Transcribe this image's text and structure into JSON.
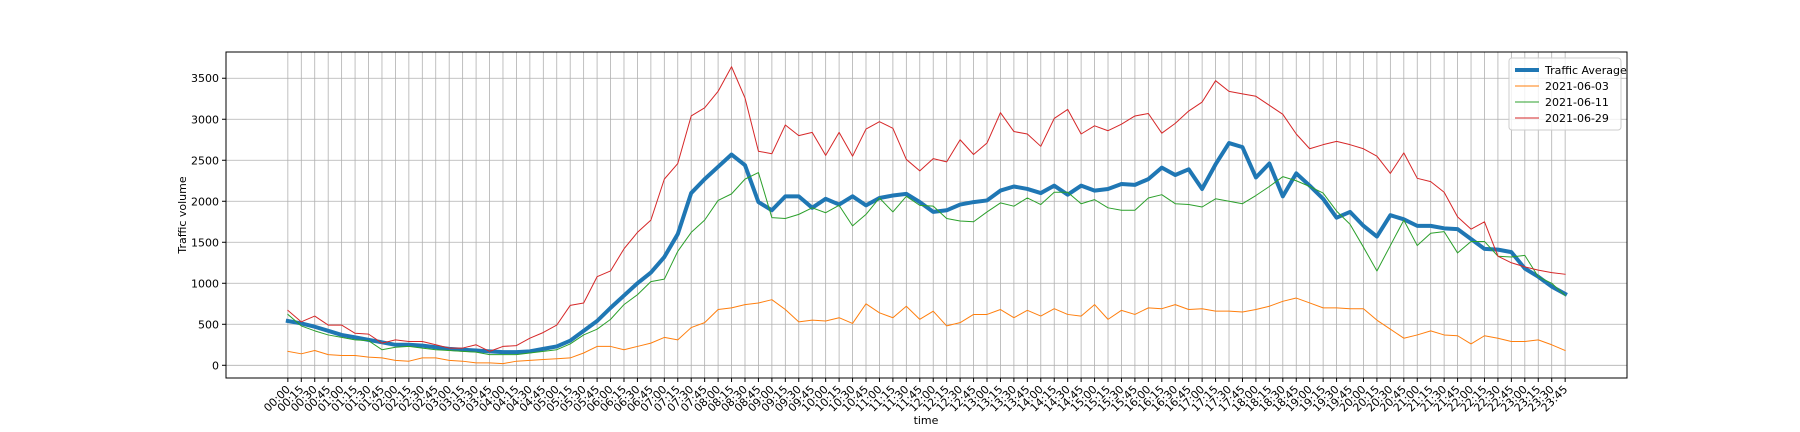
{
  "chart_data": {
    "type": "line",
    "x_label": "time",
    "y_label": "Traffic volume",
    "categories": [
      "00:00",
      "00:15",
      "00:30",
      "00:45",
      "01:00",
      "01:15",
      "01:30",
      "01:45",
      "02:00",
      "02:15",
      "02:30",
      "02:45",
      "03:00",
      "03:15",
      "03:30",
      "03:45",
      "04:00",
      "04:15",
      "04:30",
      "04:45",
      "05:00",
      "05:15",
      "05:30",
      "05:45",
      "06:00",
      "06:15",
      "06:30",
      "06:45",
      "07:00",
      "07:15",
      "07:30",
      "07:45",
      "08:00",
      "08:15",
      "08:30",
      "08:45",
      "09:00",
      "09:15",
      "09:30",
      "09:45",
      "10:00",
      "10:15",
      "10:30",
      "10:45",
      "11:00",
      "11:15",
      "11:30",
      "11:45",
      "12:00",
      "12:15",
      "12:30",
      "12:45",
      "13:00",
      "13:15",
      "13:30",
      "13:45",
      "14:00",
      "14:15",
      "14:30",
      "14:45",
      "15:00",
      "15:15",
      "15:30",
      "15:45",
      "16:00",
      "16:15",
      "16:30",
      "16:45",
      "17:00",
      "17:15",
      "17:30",
      "17:45",
      "18:00",
      "18:15",
      "18:30",
      "18:45",
      "19:00",
      "19:15",
      "19:30",
      "19:45",
      "20:00",
      "20:15",
      "20:30",
      "20:45",
      "21:00",
      "21:15",
      "21:30",
      "21:45",
      "22:00",
      "22:15",
      "22:30",
      "22:45",
      "23:00",
      "23:15",
      "23:30",
      "23:45"
    ],
    "series": [
      {
        "name": "Traffic Average",
        "color": "#1f77b4",
        "width": 4,
        "values": [
          540,
          510,
          470,
          420,
          370,
          340,
          310,
          280,
          250,
          250,
          240,
          220,
          200,
          190,
          180,
          170,
          160,
          160,
          170,
          200,
          230,
          300,
          420,
          540,
          700,
          850,
          1000,
          1130,
          1320,
          1600,
          2100,
          2270,
          2420,
          2570,
          2440,
          1990,
          1890,
          2060,
          2060,
          1920,
          2030,
          1960,
          2060,
          1950,
          2040,
          2070,
          2090,
          1990,
          1870,
          1890,
          1960,
          1990,
          2010,
          2130,
          2180,
          2150,
          2100,
          2190,
          2080,
          2190,
          2130,
          2150,
          2210,
          2200,
          2270,
          2410,
          2320,
          2390,
          2150,
          2450,
          2710,
          2660,
          2290,
          2460,
          2060,
          2340,
          2190,
          2030,
          1800,
          1870,
          1700,
          1570,
          1830,
          1780,
          1700,
          1700,
          1670,
          1660,
          1540,
          1420,
          1410,
          1380,
          1180,
          1080,
          960,
          870
        ]
      },
      {
        "name": "2021-06-03",
        "color": "#ff7f0e",
        "width": 1,
        "values": [
          170,
          140,
          180,
          130,
          120,
          120,
          100,
          90,
          60,
          50,
          90,
          90,
          60,
          50,
          30,
          30,
          20,
          50,
          60,
          70,
          80,
          90,
          150,
          230,
          230,
          190,
          230,
          270,
          340,
          310,
          460,
          520,
          680,
          700,
          740,
          760,
          800,
          680,
          530,
          550,
          540,
          580,
          510,
          750,
          640,
          580,
          720,
          560,
          660,
          480,
          520,
          620,
          620,
          680,
          580,
          670,
          600,
          690,
          620,
          600,
          740,
          560,
          670,
          620,
          700,
          690,
          740,
          680,
          690,
          660,
          660,
          650,
          680,
          720,
          780,
          820,
          760,
          700,
          700,
          690,
          690,
          550,
          440,
          330,
          370,
          420,
          370,
          360,
          260,
          360,
          330,
          290,
          290,
          310,
          250,
          180
        ]
      },
      {
        "name": "2021-06-11",
        "color": "#2ca02c",
        "width": 1,
        "values": [
          620,
          480,
          420,
          370,
          340,
          310,
          300,
          190,
          220,
          230,
          210,
          190,
          180,
          170,
          160,
          130,
          130,
          130,
          150,
          170,
          190,
          260,
          370,
          440,
          560,
          740,
          860,
          1020,
          1050,
          1390,
          1620,
          1770,
          2010,
          2090,
          2270,
          2350,
          1800,
          1790,
          1840,
          1920,
          1860,
          1950,
          1700,
          1840,
          2040,
          1870,
          2060,
          1950,
          1940,
          1790,
          1760,
          1750,
          1870,
          1980,
          1940,
          2040,
          1960,
          2110,
          2110,
          1970,
          2020,
          1920,
          1890,
          1890,
          2040,
          2080,
          1970,
          1960,
          1930,
          2030,
          2000,
          1970,
          2070,
          2180,
          2300,
          2250,
          2180,
          2100,
          1880,
          1720,
          1440,
          1150,
          1460,
          1770,
          1460,
          1610,
          1630,
          1370,
          1510,
          1510,
          1330,
          1320,
          1340,
          1080,
          1000,
          850
        ]
      },
      {
        "name": "2021-06-29",
        "color": "#d62728",
        "width": 1,
        "values": [
          670,
          530,
          600,
          490,
          490,
          390,
          380,
          270,
          310,
          290,
          290,
          250,
          210,
          210,
          250,
          170,
          230,
          240,
          330,
          400,
          490,
          730,
          760,
          1080,
          1150,
          1420,
          1620,
          1770,
          2270,
          2460,
          3040,
          3140,
          3340,
          3640,
          3260,
          2610,
          2580,
          2930,
          2800,
          2840,
          2560,
          2840,
          2550,
          2880,
          2970,
          2890,
          2510,
          2370,
          2520,
          2480,
          2750,
          2570,
          2710,
          3080,
          2850,
          2820,
          2670,
          3010,
          3120,
          2820,
          2920,
          2860,
          2940,
          3040,
          3070,
          2830,
          2950,
          3100,
          3210,
          3470,
          3340,
          3310,
          3280,
          3170,
          3060,
          2820,
          2640,
          2690,
          2730,
          2690,
          2640,
          2550,
          2340,
          2590,
          2280,
          2240,
          2110,
          1810,
          1660,
          1750,
          1330,
          1250,
          1200,
          1160,
          1130,
          1110
        ]
      }
    ],
    "ylim": [
      -155,
      3820
    ],
    "yticks": [
      0,
      500,
      1000,
      1500,
      2000,
      2500,
      3000,
      3500
    ],
    "grid": true,
    "legend": "upper right"
  }
}
